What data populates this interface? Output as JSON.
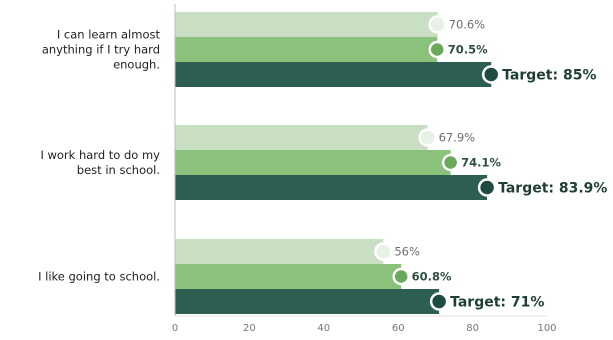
{
  "chart_data": {
    "type": "bar",
    "orientation": "horizontal",
    "categories": [
      [
        "I can learn almost",
        "anything if I try hard",
        "enough."
      ],
      [
        "I work hard to do my",
        "best in school."
      ],
      [
        "I like going to school."
      ]
    ],
    "series": [
      {
        "values": [
          70.6,
          67.9,
          56
        ],
        "value_labels": [
          "70.6%",
          "67.9%",
          "56%"
        ],
        "color": "#c9dfc4"
      },
      {
        "values": [
          70.5,
          74.1,
          60.8
        ],
        "value_labels": [
          "70.5%",
          "74.1%",
          "60.8%"
        ],
        "color": "#8bc27b"
      },
      {
        "values": [
          85,
          83.9,
          71
        ],
        "value_labels": [
          "Target: 85%",
          "Target: 83.9%",
          "Target: 71%"
        ],
        "color": "#2e5e52"
      }
    ],
    "x_ticks": [
      0,
      20,
      40,
      60,
      80,
      100
    ],
    "xlim": [
      0,
      100
    ],
    "grid": false,
    "legend": "none"
  }
}
